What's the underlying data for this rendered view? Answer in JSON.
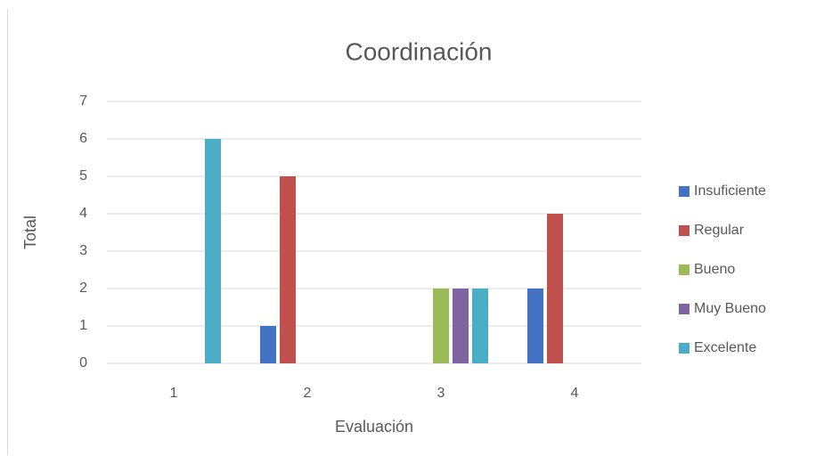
{
  "chart_data": {
    "type": "bar",
    "title": "Coordinación",
    "x_label": "Evaluación",
    "y_label": "Total",
    "categories": [
      "1",
      "2",
      "3",
      "4"
    ],
    "series": [
      {
        "name": "Insuficiente",
        "color": "#4472c4",
        "values": [
          0,
          1,
          0,
          2
        ]
      },
      {
        "name": "Regular",
        "color": "#c0504d",
        "values": [
          0,
          5,
          0,
          4
        ]
      },
      {
        "name": "Bueno",
        "color": "#9bbb59",
        "values": [
          0,
          0,
          2,
          0
        ]
      },
      {
        "name": "Muy Bueno",
        "color": "#8064a2",
        "values": [
          0,
          0,
          2,
          0
        ]
      },
      {
        "name": "Excelente",
        "color": "#4bacc6",
        "values": [
          6,
          0,
          2,
          0
        ]
      }
    ],
    "ylim": [
      0,
      7
    ],
    "yticks": [
      0,
      1,
      2,
      3,
      4,
      5,
      6,
      7
    ],
    "grid": true,
    "legend": "right"
  }
}
